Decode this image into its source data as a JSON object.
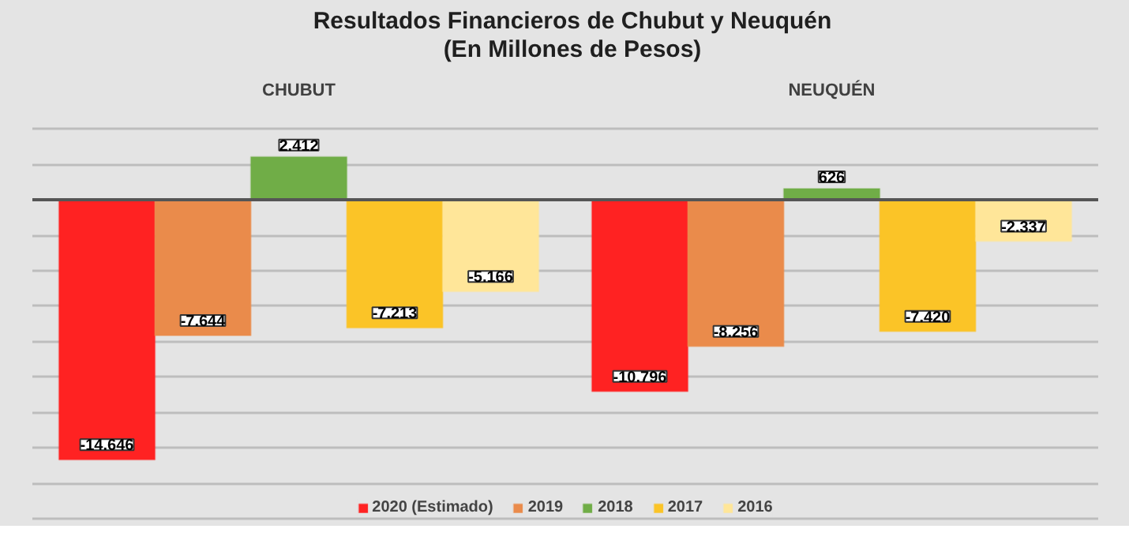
{
  "chart_data": {
    "type": "bar",
    "title": "Resultados Financieros de Chubut y Neuquén\n(En Millones de Pesos)",
    "categories": [
      "CHUBUT",
      "NEUQUÉN"
    ],
    "series": [
      {
        "name": "2020 (Estimado)",
        "color": "#ff2222",
        "values": [
          -14646,
          -10796
        ],
        "value_labels": [
          "-14.646",
          "-10.796"
        ]
      },
      {
        "name": "2019",
        "color": "#ea8b4b",
        "values": [
          -7644,
          -8256
        ],
        "value_labels": [
          "-7.644",
          "-8.256"
        ]
      },
      {
        "name": "2018",
        "color": "#70ad47",
        "values": [
          2412,
          626
        ],
        "value_labels": [
          "2.412",
          "626"
        ]
      },
      {
        "name": "2017",
        "color": "#fbc427",
        "values": [
          -7213,
          -7420
        ],
        "value_labels": [
          "-7.213",
          "-7.420"
        ]
      },
      {
        "name": "2016",
        "color": "#ffe699",
        "values": [
          -5166,
          -2337
        ],
        "value_labels": [
          "-5.166",
          "-2.337"
        ]
      }
    ],
    "tick_labels": "x",
    "grid": "y",
    "legend": "bottom"
  }
}
